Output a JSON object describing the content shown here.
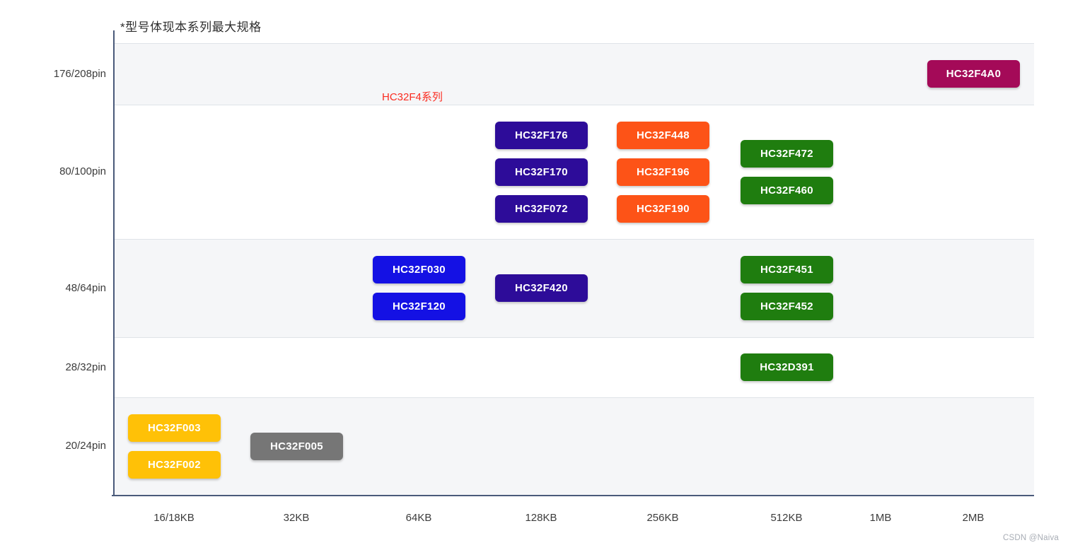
{
  "title": "*型号体现本系列最大规格",
  "series_annotation": {
    "text": "HC32F4系列",
    "color": "#fa2c21"
  },
  "watermark": "CSDN @Naiva",
  "palette": {
    "magenta": "#a40a58",
    "deep_blue": "#2d0c99",
    "orange": "#fd5317",
    "green": "#1f7d0f",
    "blue": "#1411e4",
    "yellow": "#ffc107",
    "gray": "#767676",
    "axis_line": "#4a5a7a",
    "row_stripe": "#f5f6f8",
    "row_separator": "#dfe3e8",
    "label_text": "#3c3c3c",
    "watermark_text": "#a8adb5"
  },
  "chart_data": {
    "type": "matrix",
    "x_categories": [
      "16/18KB",
      "32KB",
      "64KB",
      "128KB",
      "256KB",
      "512KB",
      "1MB",
      "2MB"
    ],
    "y_categories": [
      "176/208pin",
      "80/100pin",
      "48/64pin",
      "28/32pin",
      "20/24pin"
    ],
    "title": "*型号体现本系列最大规格",
    "annotations": [
      {
        "text": "HC32F4系列",
        "color": "#fa2c21"
      }
    ],
    "legend": "none",
    "grid": "horizontal-stripes",
    "chips": [
      {
        "label": "HC32F4A0",
        "pins": "176/208pin",
        "flash": "2MB",
        "color": "magenta",
        "row": 0,
        "col": 7
      },
      {
        "label": "HC32F176",
        "pins": "80/100pin",
        "flash": "128KB",
        "color": "deep_blue",
        "row": 1,
        "col": 3
      },
      {
        "label": "HC32F170",
        "pins": "80/100pin",
        "flash": "128KB",
        "color": "deep_blue",
        "row": 1,
        "col": 3
      },
      {
        "label": "HC32F072",
        "pins": "80/100pin",
        "flash": "128KB",
        "color": "deep_blue",
        "row": 1,
        "col": 3
      },
      {
        "label": "HC32F448",
        "pins": "80/100pin",
        "flash": "256KB",
        "color": "orange",
        "row": 1,
        "col": 4
      },
      {
        "label": "HC32F196",
        "pins": "80/100pin",
        "flash": "256KB",
        "color": "orange",
        "row": 1,
        "col": 4
      },
      {
        "label": "HC32F190",
        "pins": "80/100pin",
        "flash": "256KB",
        "color": "orange",
        "row": 1,
        "col": 4
      },
      {
        "label": "HC32F472",
        "pins": "80/100pin",
        "flash": "512KB",
        "color": "green",
        "row": 1,
        "col": 5
      },
      {
        "label": "HC32F460",
        "pins": "80/100pin",
        "flash": "512KB",
        "color": "green",
        "row": 1,
        "col": 5
      },
      {
        "label": "HC32F030",
        "pins": "48/64pin",
        "flash": "64KB",
        "color": "blue",
        "row": 2,
        "col": 2
      },
      {
        "label": "HC32F120",
        "pins": "48/64pin",
        "flash": "64KB",
        "color": "blue",
        "row": 2,
        "col": 2
      },
      {
        "label": "HC32F420",
        "pins": "48/64pin",
        "flash": "128KB",
        "color": "deep_blue",
        "row": 2,
        "col": 3
      },
      {
        "label": "HC32F451",
        "pins": "48/64pin",
        "flash": "512KB",
        "color": "green",
        "row": 2,
        "col": 5
      },
      {
        "label": "HC32F452",
        "pins": "48/64pin",
        "flash": "512KB",
        "color": "green",
        "row": 2,
        "col": 5
      },
      {
        "label": "HC32D391",
        "pins": "28/32pin",
        "flash": "512KB",
        "color": "green",
        "row": 3,
        "col": 5
      },
      {
        "label": "HC32F003",
        "pins": "20/24pin",
        "flash": "16/18KB",
        "color": "yellow",
        "row": 4,
        "col": 0
      },
      {
        "label": "HC32F002",
        "pins": "20/24pin",
        "flash": "16/18KB",
        "color": "yellow",
        "row": 4,
        "col": 0
      },
      {
        "label": "HC32F005",
        "pins": "20/24pin",
        "flash": "32KB",
        "color": "gray",
        "row": 4,
        "col": 1
      }
    ]
  }
}
